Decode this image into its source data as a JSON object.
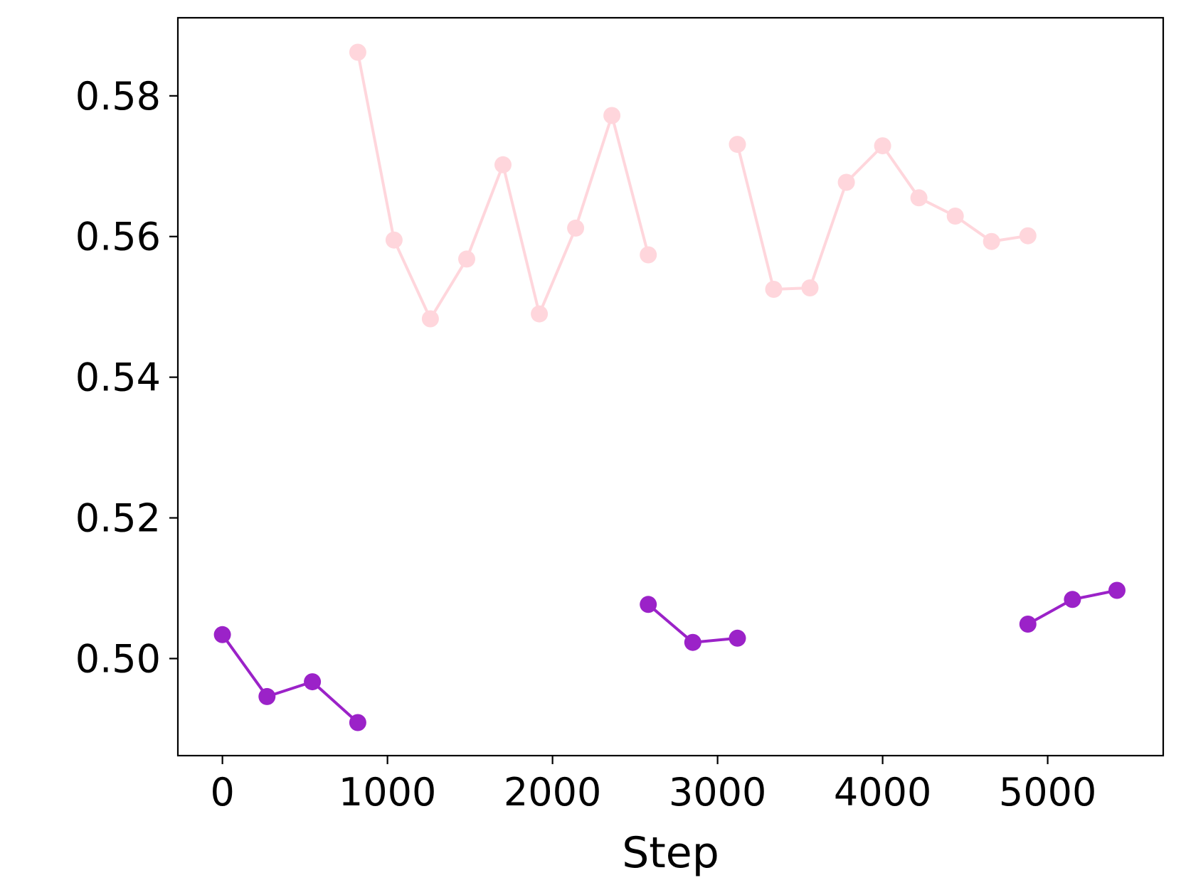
{
  "chart_data": {
    "type": "line",
    "title": "",
    "xlabel": "Step",
    "ylabel": "",
    "xlim": [
      -270,
      5700
    ],
    "ylim": [
      0.4862,
      0.5911
    ],
    "xticks": [
      0,
      1000,
      2000,
      3000,
      4000,
      5000
    ],
    "xtick_labels": [
      "0",
      "1000",
      "2000",
      "3000",
      "4000",
      "5000"
    ],
    "yticks": [
      0.5,
      0.52,
      0.54,
      0.56,
      0.58
    ],
    "ytick_labels": [
      "0.50",
      "0.52",
      "0.54",
      "0.56",
      "0.58"
    ],
    "grid": false,
    "legend": "none",
    "series": [
      {
        "color": "#ffd6dc",
        "segments": [
          [
            [
              820,
              0.5862
            ],
            [
              1040,
              0.5595
            ],
            [
              1260,
              0.5483
            ],
            [
              1480,
              0.5568
            ],
            [
              1700,
              0.5702
            ],
            [
              1920,
              0.549
            ],
            [
              2140,
              0.5612
            ],
            [
              2360,
              0.5772
            ],
            [
              2580,
              0.5574
            ]
          ],
          [
            [
              3120,
              0.5731
            ],
            [
              3340,
              0.5525
            ],
            [
              3560,
              0.5527
            ],
            [
              3780,
              0.5677
            ],
            [
              4000,
              0.5729
            ],
            [
              4220,
              0.5655
            ],
            [
              4440,
              0.5629
            ],
            [
              4660,
              0.5593
            ],
            [
              4880,
              0.5601
            ]
          ]
        ]
      },
      {
        "color": "#9b22c8",
        "segments": [
          [
            [
              0,
              0.5034
            ],
            [
              270,
              0.4946
            ],
            [
              545,
              0.4967
            ],
            [
              820,
              0.4909
            ]
          ],
          [
            [
              2580,
              0.5077
            ],
            [
              2850,
              0.5023
            ],
            [
              3120,
              0.5029
            ]
          ],
          [
            [
              4880,
              0.5049
            ],
            [
              5150,
              0.5084
            ],
            [
              5420,
              0.5097
            ]
          ]
        ]
      }
    ]
  }
}
